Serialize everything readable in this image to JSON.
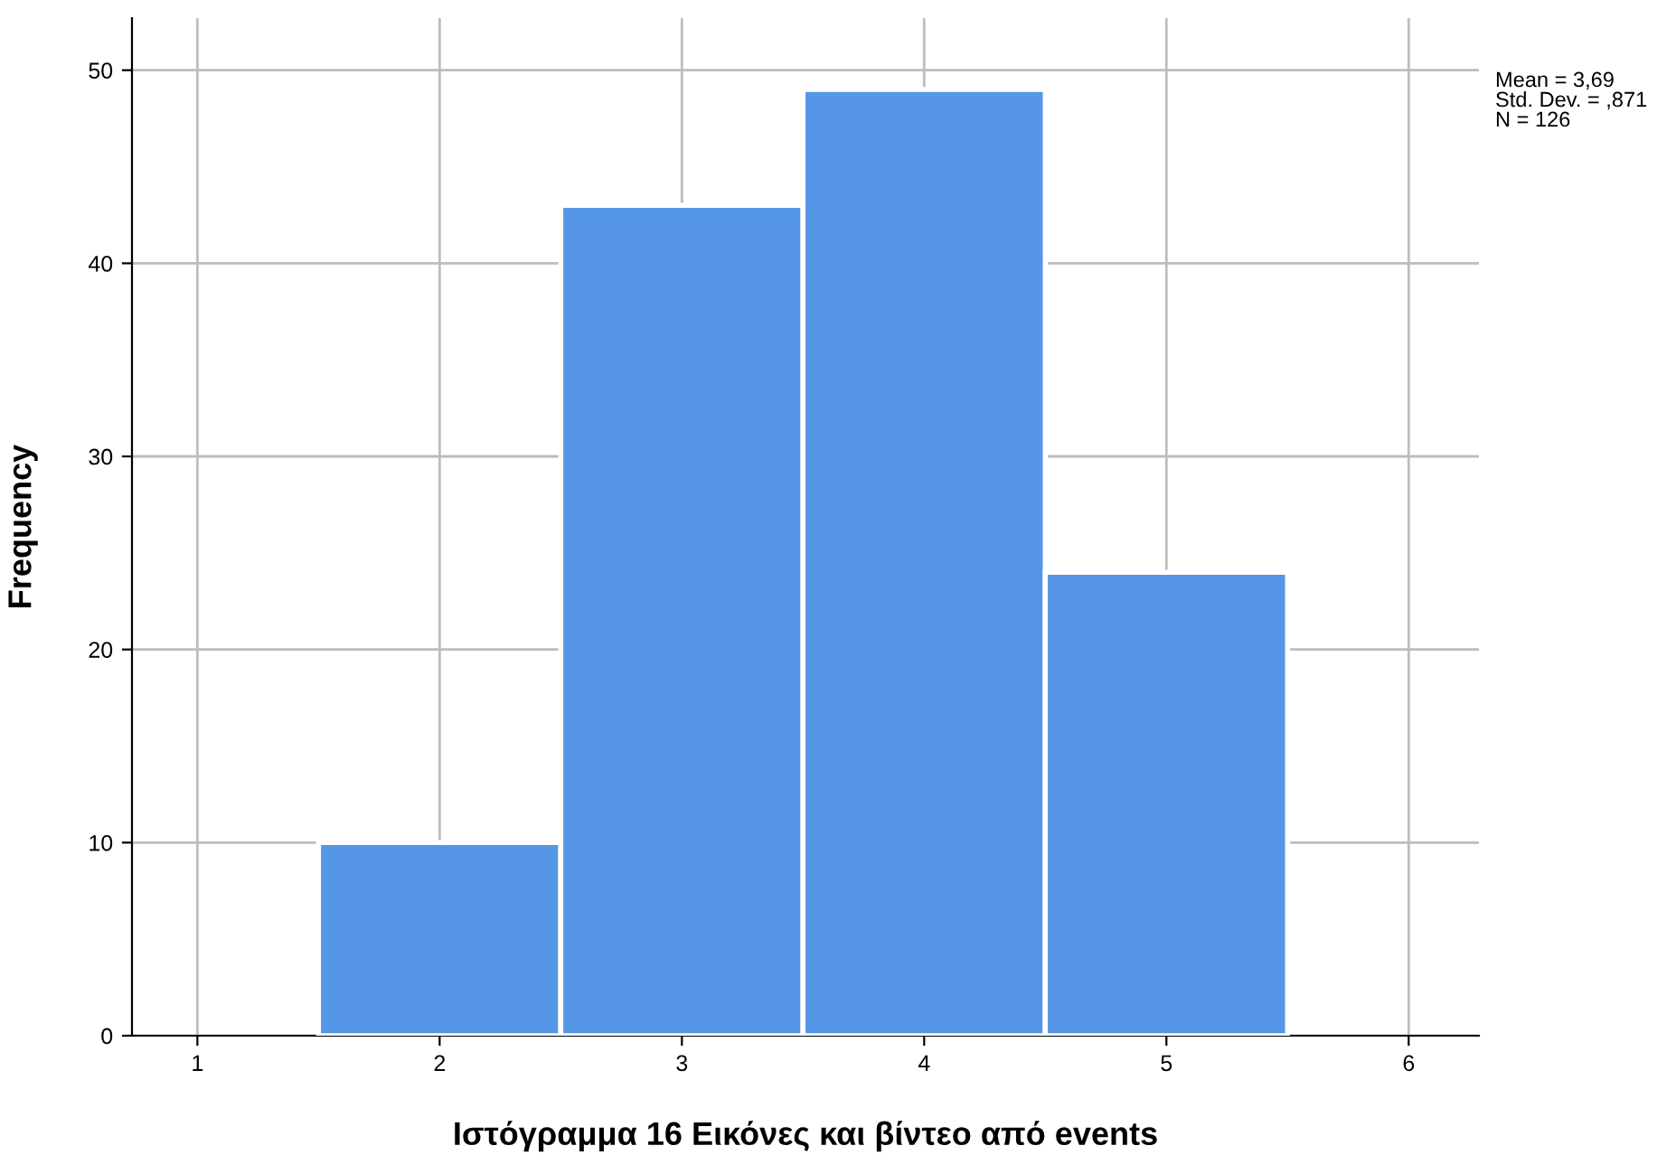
{
  "chart_data": {
    "type": "histogram",
    "xlabel": "Ιστόγραμμα 16 Εικόνες και βίντεο από events",
    "ylabel": "Frequency",
    "bins": [
      1.5,
      2.5,
      3.5,
      4.5,
      5.5
    ],
    "values": [
      10,
      43,
      49,
      24
    ],
    "color": "#5596e6",
    "xlim": [
      0.73,
      6.29
    ],
    "xticks": [
      1,
      2,
      3,
      4,
      5,
      6
    ],
    "ylim": [
      0,
      52.7
    ],
    "yticks": [
      0,
      10,
      20,
      30,
      40,
      50
    ],
    "grid": true,
    "annotations": [
      "Mean = 3,69",
      "Std. Dev. = ,871",
      "N = 126"
    ]
  }
}
